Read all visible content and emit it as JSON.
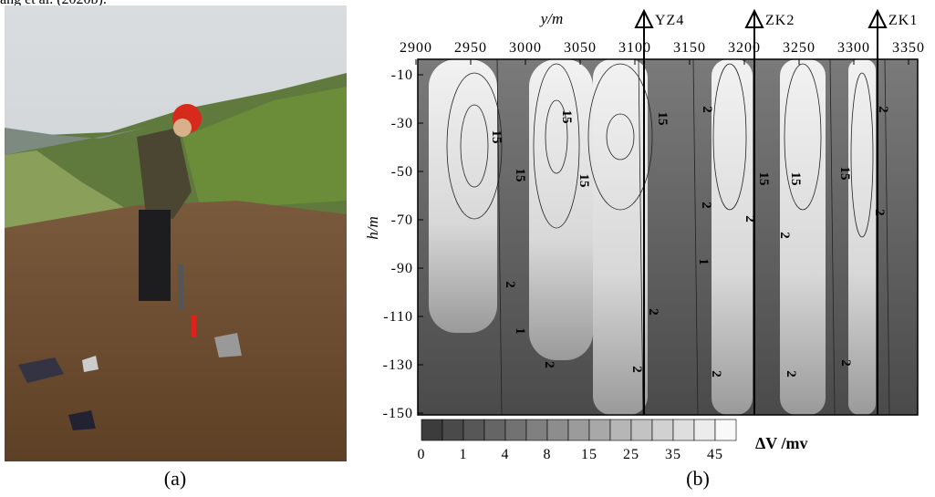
{
  "header": {
    "text": "ang et al. (2020b)."
  },
  "panel_a": {
    "caption": "(a)"
  },
  "panel_b": {
    "caption": "(b)",
    "x_axis_label": "y/m",
    "y_axis_label": "h/m",
    "x_ticks": [
      "2900",
      "2950",
      "3000",
      "3050",
      "3100",
      "3150",
      "3200",
      "3250",
      "3300",
      "3350"
    ],
    "y_ticks": [
      "-10",
      "-30",
      "-50",
      "-70",
      "-90",
      "-110",
      "-130",
      "-150"
    ],
    "boreholes": [
      "YZ4",
      "ZK2",
      "ZK1"
    ],
    "contour_labels": [
      "15",
      "15",
      "15",
      "15",
      "15",
      "15",
      "15",
      "15",
      "2",
      "2",
      "2",
      "2",
      "2",
      "2",
      "2",
      "2",
      "2",
      "2",
      "2",
      "2",
      "2",
      "1",
      "1"
    ],
    "colorbar_labels": [
      "0",
      "1",
      "4",
      "8",
      "15",
      "25",
      "35",
      "45"
    ],
    "colorbar_title": "ΔV /mv"
  }
}
